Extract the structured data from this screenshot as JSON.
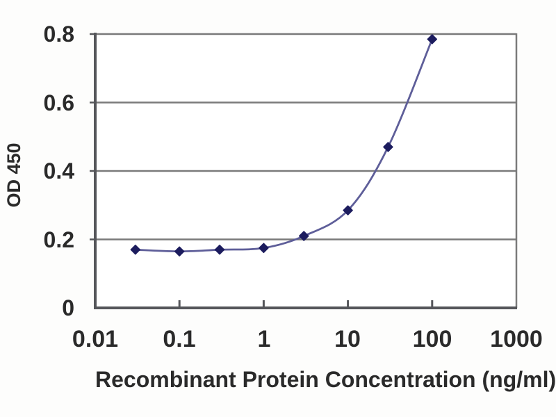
{
  "page": {
    "background": "#fdfdfc"
  },
  "chart_data": {
    "type": "line",
    "title": "",
    "xlabel": "Recombinant Protein Concentration (ng/ml)",
    "ylabel": "OD 450",
    "x_scale": "log",
    "y_scale": "linear",
    "xlim": [
      0.01,
      1000
    ],
    "ylim": [
      0,
      0.8
    ],
    "xtick_labels": [
      "0.01",
      "0.1",
      "1",
      "10",
      "100",
      "1000"
    ],
    "xtick_values": [
      0.01,
      0.1,
      1,
      10,
      100,
      1000
    ],
    "ytick_labels": [
      "0",
      "0.2",
      "0.4",
      "0.6",
      "0.8"
    ],
    "ytick_values": [
      0,
      0.2,
      0.4,
      0.6,
      0.8
    ],
    "grid": "horizontal",
    "legend": "none",
    "series": [
      {
        "name": "OD 450",
        "marker": "diamond",
        "line_style": "smooth",
        "x": [
          0.03,
          0.1,
          0.3,
          1,
          3,
          10,
          30,
          100
        ],
        "y": [
          0.17,
          0.165,
          0.17,
          0.175,
          0.21,
          0.285,
          0.47,
          0.785
        ]
      }
    ],
    "colors": {
      "line": "#5e5e99",
      "marker": "#1c1c5e",
      "grid": "#7a7a7a",
      "axis": "#55565a",
      "text": "#2a2a2a",
      "plot_bg": "#ffffff"
    }
  }
}
